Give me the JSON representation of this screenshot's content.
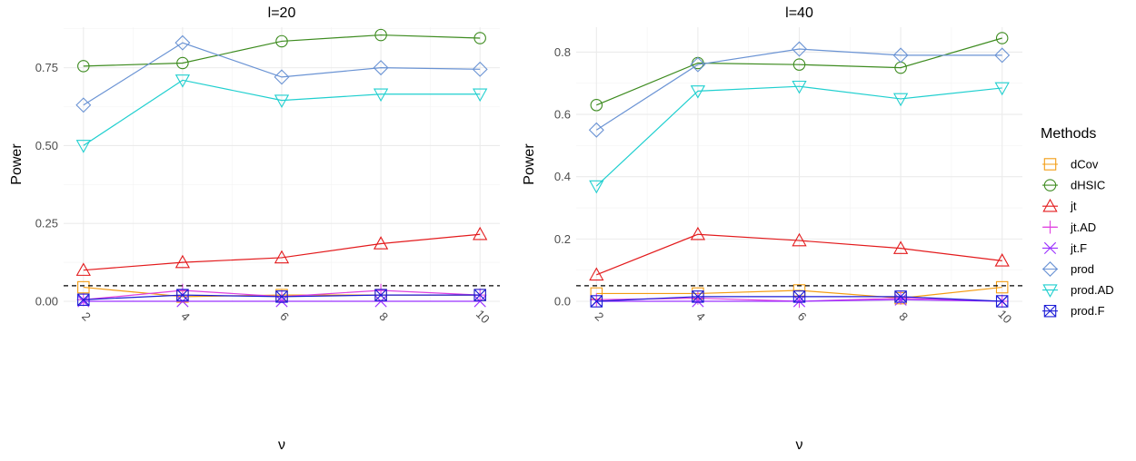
{
  "chart_data": [
    {
      "type": "line",
      "title": "l=20",
      "xlabel": "ν",
      "ylabel": "Power",
      "x": [
        2,
        4,
        6,
        8,
        10
      ],
      "xticks": [
        "2",
        "4",
        "6",
        "8",
        "10"
      ],
      "ylim": [
        0,
        0.88
      ],
      "yticks": [
        "0.00",
        "0.25",
        "0.50",
        "0.75"
      ],
      "ytick_values": [
        0,
        0.25,
        0.5,
        0.75
      ],
      "reference_line": 0.05,
      "series": [
        {
          "name": "dCov",
          "values": [
            0.045,
            0.015,
            0.02,
            0.02,
            0.02
          ]
        },
        {
          "name": "dHSIC",
          "values": [
            0.755,
            0.765,
            0.835,
            0.855,
            0.845
          ]
        },
        {
          "name": "jt",
          "values": [
            0.1,
            0.125,
            0.14,
            0.185,
            0.215
          ]
        },
        {
          "name": "jt.AD",
          "values": [
            0.005,
            0.035,
            0.015,
            0.035,
            0.02
          ]
        },
        {
          "name": "jt.F",
          "values": [
            0.0,
            0.0,
            0.0,
            0.0,
            0.0
          ]
        },
        {
          "name": "prod",
          "values": [
            0.63,
            0.83,
            0.72,
            0.75,
            0.745
          ]
        },
        {
          "name": "prod.AD",
          "values": [
            0.5,
            0.71,
            0.645,
            0.665,
            0.665
          ]
        },
        {
          "name": "prod.F",
          "values": [
            0.005,
            0.02,
            0.015,
            0.02,
            0.02
          ]
        }
      ]
    },
    {
      "type": "line",
      "title": "l=40",
      "xlabel": "ν",
      "ylabel": "Power",
      "x": [
        2,
        4,
        6,
        8,
        10
      ],
      "xticks": [
        "2",
        "4",
        "6",
        "8",
        "10"
      ],
      "ylim": [
        0,
        0.88
      ],
      "yticks": [
        "0.0",
        "0.2",
        "0.4",
        "0.6",
        "0.8"
      ],
      "ytick_values": [
        0,
        0.2,
        0.4,
        0.6,
        0.8
      ],
      "reference_line": 0.05,
      "series": [
        {
          "name": "dCov",
          "values": [
            0.025,
            0.025,
            0.035,
            0.01,
            0.045
          ]
        },
        {
          "name": "dHSIC",
          "values": [
            0.63,
            0.765,
            0.76,
            0.75,
            0.845
          ]
        },
        {
          "name": "jt",
          "values": [
            0.085,
            0.215,
            0.195,
            0.17,
            0.13
          ]
        },
        {
          "name": "jt.AD",
          "values": [
            0.005,
            0.01,
            0.0,
            0.01,
            0.0
          ]
        },
        {
          "name": "jt.F",
          "values": [
            0.0,
            0.0,
            0.0,
            0.005,
            0.0
          ]
        },
        {
          "name": "prod",
          "values": [
            0.55,
            0.76,
            0.81,
            0.79,
            0.79
          ]
        },
        {
          "name": "prod.AD",
          "values": [
            0.37,
            0.675,
            0.69,
            0.65,
            0.685
          ]
        },
        {
          "name": "prod.F",
          "values": [
            0.0,
            0.015,
            0.015,
            0.015,
            0.0
          ]
        }
      ]
    }
  ],
  "legend": {
    "title": "Methods",
    "placement": "right",
    "items": [
      {
        "name": "dCov",
        "color": "#F39C12",
        "shape": "square"
      },
      {
        "name": "dHSIC",
        "color": "#3D8B1F",
        "shape": "circle"
      },
      {
        "name": "jt",
        "color": "#E31A1C",
        "shape": "triangle-up"
      },
      {
        "name": "jt.AD",
        "color": "#E040E0",
        "shape": "plus"
      },
      {
        "name": "jt.F",
        "color": "#9B30FF",
        "shape": "cross"
      },
      {
        "name": "prod",
        "color": "#6A93D4",
        "shape": "diamond"
      },
      {
        "name": "prod.AD",
        "color": "#1FCFCF",
        "shape": "triangle-down"
      },
      {
        "name": "prod.F",
        "color": "#1C1CD6",
        "shape": "square-cross"
      }
    ]
  }
}
